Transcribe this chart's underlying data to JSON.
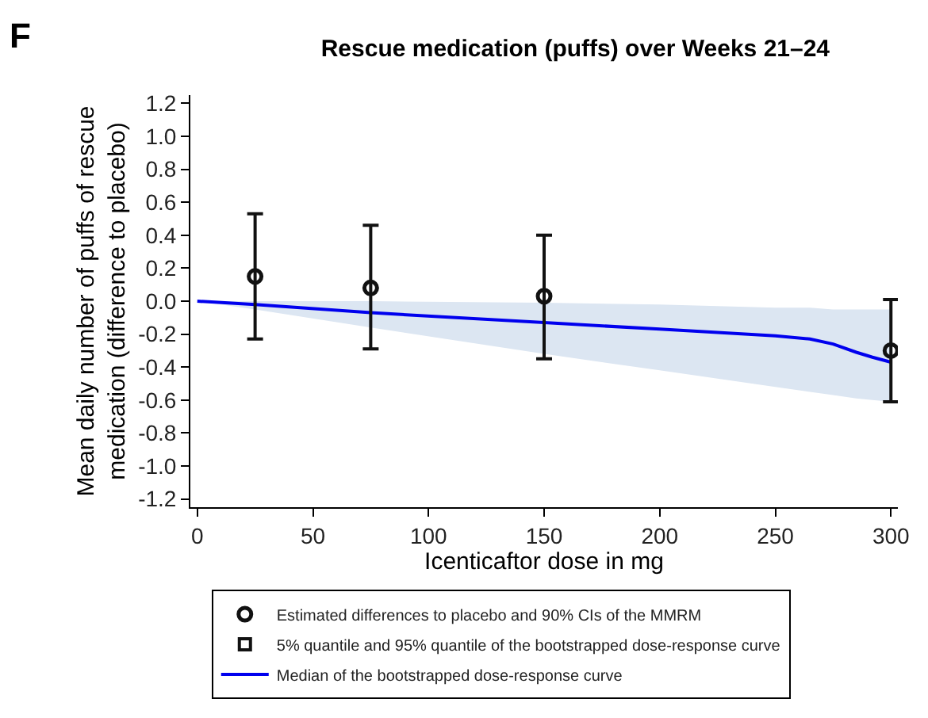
{
  "chart_data": {
    "type": "scatter",
    "title": "Rescue medication (puffs) over Weeks 21–24",
    "xlabel": "Icenticaftor dose in mg",
    "ylabel": "Mean daily number of puffs of rescue\nmedication (difference to placebo)",
    "annotations": [
      "F",
      "5% quantile and 95% quantile of the bootstrapped dose-response curve"
    ],
    "xlim": [
      -3,
      303
    ],
    "xticks": [
      0,
      50,
      100,
      150,
      200,
      250,
      300
    ],
    "ylim": [
      -1.25,
      1.25
    ],
    "yticks": [
      {
        "value": 1.2,
        "label": "1.2"
      },
      {
        "value": 1.0,
        "label": "1.0"
      },
      {
        "value": 0.8,
        "label": "0.8"
      },
      {
        "value": 0.6,
        "label": "0.6"
      },
      {
        "value": 0.4,
        "label": "0.4"
      },
      {
        "value": 0.2,
        "label": "0.2"
      },
      {
        "value": 0.0,
        "label": "0.0"
      },
      {
        "value": -0.2,
        "label": "-0.2"
      },
      {
        "value": -0.4,
        "label": "-0.4"
      },
      {
        "value": -0.6,
        "label": "-0.6"
      },
      {
        "value": -0.8,
        "label": "-0.8"
      },
      {
        "value": -1.0,
        "label": "-1.0"
      },
      {
        "value": -1.2,
        "label": "-1.2"
      }
    ],
    "legend": "bottom",
    "series": [
      {
        "type": "line",
        "name": "Median of the bootstrapped dose-response curve",
        "color": "#0000ee",
        "line_style": "solid",
        "marker": "none",
        "x": [
          0,
          25,
          75,
          150,
          200,
          250,
          265,
          275,
          285,
          292,
          300
        ],
        "values": [
          0,
          -0.02,
          -0.07,
          -0.13,
          -0.17,
          -0.21,
          -0.23,
          -0.26,
          -0.31,
          -0.34,
          -0.37
        ],
        "lower": [
          0,
          -0.05,
          -0.16,
          -0.32,
          -0.42,
          -0.52,
          -0.55,
          -0.57,
          -0.59,
          -0.6,
          -0.61
        ],
        "upper": [
          0,
          0,
          0,
          -0.01,
          -0.02,
          -0.04,
          -0.04,
          -0.05,
          -0.05,
          -0.05,
          -0.05
        ]
      },
      {
        "name": "Estimated differences to placebo and 90% CIs of the MMRM",
        "color": "#111111",
        "marker": "circle",
        "x": [
          25,
          75,
          150,
          300
        ],
        "values": [
          0.15,
          0.08,
          0.03,
          -0.3
        ],
        "errors": [
          [
            -0.23,
            0.53
          ],
          [
            -0.29,
            0.46
          ],
          [
            -0.35,
            0.4
          ],
          [
            -0.61,
            0.01
          ]
        ]
      }
    ]
  }
}
